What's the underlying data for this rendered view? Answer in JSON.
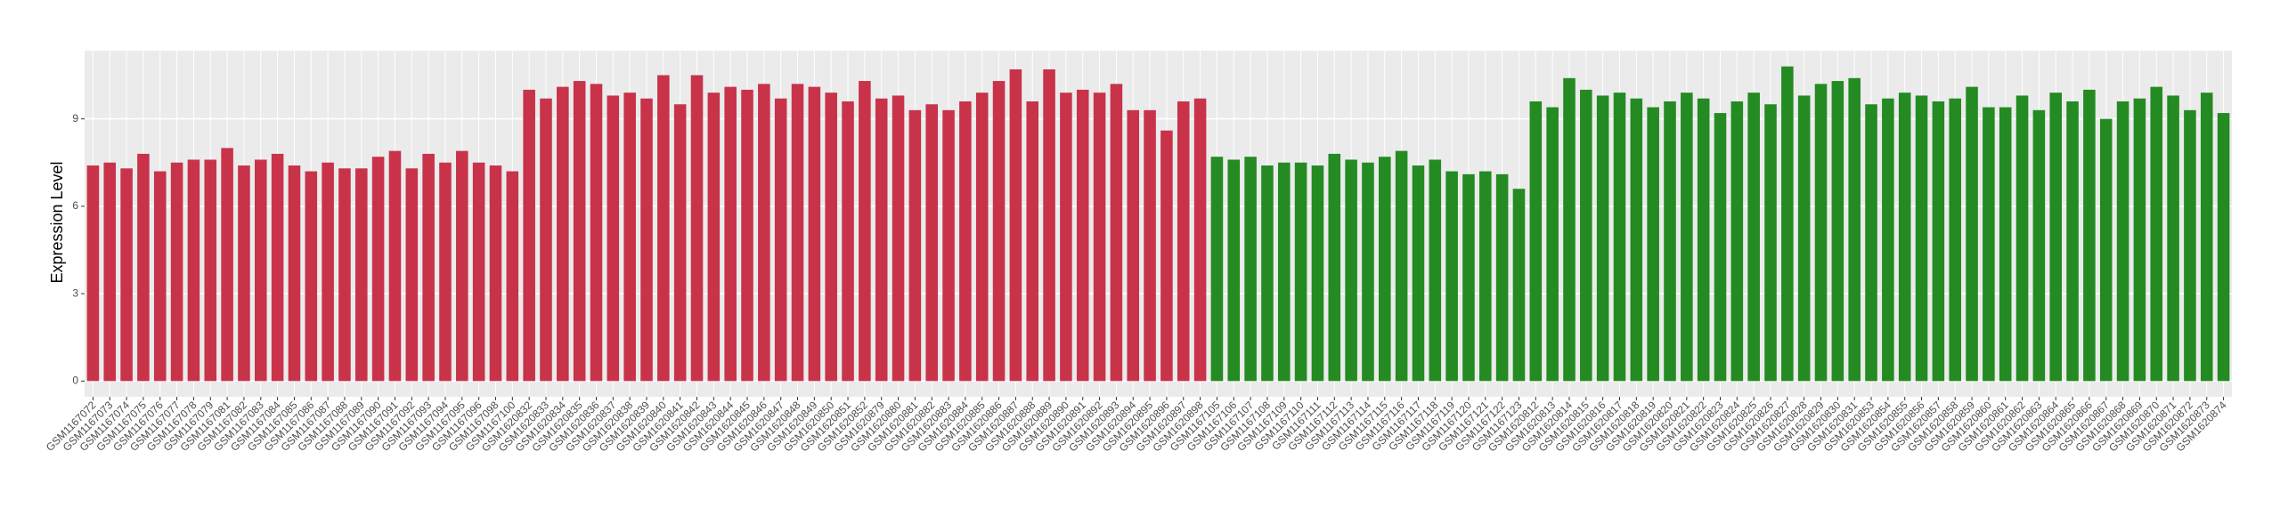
{
  "chart_data": {
    "type": "bar",
    "y_label": "Expression Level",
    "categories": [
      "GSM1167072",
      "GSM1167073",
      "GSM1167074",
      "GSM1167075",
      "GSM1167076",
      "GSM1167077",
      "GSM1167078",
      "GSM1167079",
      "GSM1167081",
      "GSM1167082",
      "GSM1167083",
      "GSM1167084",
      "GSM1167085",
      "GSM1167086",
      "GSM1167087",
      "GSM1167088",
      "GSM1167089",
      "GSM1167090",
      "GSM1167091",
      "GSM1167092",
      "GSM1167093",
      "GSM1167094",
      "GSM1167095",
      "GSM1167096",
      "GSM1167098",
      "GSM1167100",
      "GSM1620832",
      "GSM1620833",
      "GSM1620834",
      "GSM1620835",
      "GSM1620836",
      "GSM1620837",
      "GSM1620838",
      "GSM1620839",
      "GSM1620840",
      "GSM1620841",
      "GSM1620842",
      "GSM1620843",
      "GSM1620844",
      "GSM1620845",
      "GSM1620846",
      "GSM1620847",
      "GSM1620848",
      "GSM1620849",
      "GSM1620850",
      "GSM1620851",
      "GSM1620852",
      "GSM1620879",
      "GSM1620880",
      "GSM1620881",
      "GSM1620882",
      "GSM1620883",
      "GSM1620884",
      "GSM1620885",
      "GSM1620886",
      "GSM1620887",
      "GSM1620888",
      "GSM1620889",
      "GSM1620890",
      "GSM1620891",
      "GSM1620892",
      "GSM1620893",
      "GSM1620894",
      "GSM1620895",
      "GSM1620896",
      "GSM1620897",
      "GSM1620898",
      "GSM1167105",
      "GSM1167106",
      "GSM1167107",
      "GSM1167108",
      "GSM1167109",
      "GSM1167110",
      "GSM1167111",
      "GSM1167112",
      "GSM1167113",
      "GSM1167114",
      "GSM1167115",
      "GSM1167116",
      "GSM1167117",
      "GSM1167118",
      "GSM1167119",
      "GSM1167120",
      "GSM1167121",
      "GSM1167122",
      "GSM1167123",
      "GSM1620812",
      "GSM1620813",
      "GSM1620814",
      "GSM1620815",
      "GSM1620816",
      "GSM1620817",
      "GSM1620818",
      "GSM1620819",
      "GSM1620820",
      "GSM1620821",
      "GSM1620822",
      "GSM1620823",
      "GSM1620824",
      "GSM1620825",
      "GSM1620826",
      "GSM1620827",
      "GSM1620828",
      "GSM1620829",
      "GSM1620830",
      "GSM1620831",
      "GSM1620853",
      "GSM1620854",
      "GSM1620855",
      "GSM1620856",
      "GSM1620857",
      "GSM1620858",
      "GSM1620859",
      "GSM1620860",
      "GSM1620861",
      "GSM1620862",
      "GSM1620863",
      "GSM1620864",
      "GSM1620865",
      "GSM1620866",
      "GSM1620867",
      "GSM1620868",
      "GSM1620869",
      "GSM1620870",
      "GSM1620871",
      "GSM1620872",
      "GSM1620873",
      "GSM1620874"
    ],
    "values": [
      7.4,
      7.5,
      7.3,
      7.8,
      7.2,
      7.5,
      7.6,
      7.6,
      8.0,
      7.4,
      7.6,
      7.8,
      7.4,
      7.2,
      7.5,
      7.3,
      7.3,
      7.7,
      7.9,
      7.3,
      7.8,
      7.5,
      7.9,
      7.5,
      7.4,
      7.2,
      10.0,
      9.7,
      10.1,
      10.3,
      10.2,
      9.8,
      9.9,
      9.7,
      10.5,
      9.5,
      10.5,
      9.9,
      10.1,
      10.0,
      10.2,
      9.7,
      10.2,
      10.1,
      9.9,
      9.6,
      10.3,
      9.7,
      9.8,
      9.3,
      9.5,
      9.3,
      9.6,
      9.9,
      10.3,
      10.7,
      9.6,
      10.7,
      9.9,
      10.0,
      9.9,
      10.2,
      9.3,
      9.3,
      8.6,
      9.6,
      9.7,
      7.7,
      7.6,
      7.7,
      7.4,
      7.5,
      7.5,
      7.4,
      7.8,
      7.6,
      7.5,
      7.7,
      7.9,
      7.4,
      7.6,
      7.2,
      7.1,
      7.2,
      7.1,
      6.6,
      9.6,
      9.4,
      10.4,
      10.0,
      9.8,
      9.9,
      9.7,
      9.4,
      9.6,
      9.9,
      9.7,
      9.2,
      9.6,
      9.9,
      9.5,
      10.8,
      9.8,
      10.2,
      10.3,
      10.4,
      9.5,
      9.7,
      9.9,
      9.8,
      9.6,
      9.7,
      10.1,
      9.4,
      9.4,
      9.8,
      9.3,
      9.9,
      9.6,
      10.0,
      9.0,
      9.6,
      9.7,
      10.1,
      9.8,
      9.3,
      9.9,
      9.2
    ],
    "colors": [
      "#c8334a",
      "#c8334a",
      "#c8334a",
      "#c8334a",
      "#c8334a",
      "#c8334a",
      "#c8334a",
      "#c8334a",
      "#c8334a",
      "#c8334a",
      "#c8334a",
      "#c8334a",
      "#c8334a",
      "#c8334a",
      "#c8334a",
      "#c8334a",
      "#c8334a",
      "#c8334a",
      "#c8334a",
      "#c8334a",
      "#c8334a",
      "#c8334a",
      "#c8334a",
      "#c8334a",
      "#c8334a",
      "#c8334a",
      "#c8334a",
      "#c8334a",
      "#c8334a",
      "#c8334a",
      "#c8334a",
      "#c8334a",
      "#c8334a",
      "#c8334a",
      "#c8334a",
      "#c8334a",
      "#c8334a",
      "#c8334a",
      "#c8334a",
      "#c8334a",
      "#c8334a",
      "#c8334a",
      "#c8334a",
      "#c8334a",
      "#c8334a",
      "#c8334a",
      "#c8334a",
      "#c8334a",
      "#c8334a",
      "#c8334a",
      "#c8334a",
      "#c8334a",
      "#c8334a",
      "#c8334a",
      "#c8334a",
      "#c8334a",
      "#c8334a",
      "#c8334a",
      "#c8334a",
      "#c8334a",
      "#c8334a",
      "#c8334a",
      "#c8334a",
      "#c8334a",
      "#c8334a",
      "#c8334a",
      "#c8334a",
      "#238b22",
      "#238b22",
      "#238b22",
      "#238b22",
      "#238b22",
      "#238b22",
      "#238b22",
      "#238b22",
      "#238b22",
      "#238b22",
      "#238b22",
      "#238b22",
      "#238b22",
      "#238b22",
      "#238b22",
      "#238b22",
      "#238b22",
      "#238b22",
      "#238b22",
      "#238b22",
      "#238b22",
      "#238b22",
      "#238b22",
      "#238b22",
      "#238b22",
      "#238b22",
      "#238b22",
      "#238b22",
      "#238b22",
      "#238b22",
      "#238b22",
      "#238b22",
      "#238b22",
      "#238b22",
      "#238b22",
      "#238b22",
      "#238b22",
      "#238b22",
      "#238b22",
      "#238b22",
      "#238b22",
      "#238b22",
      "#238b22",
      "#238b22",
      "#238b22",
      "#238b22",
      "#238b22",
      "#238b22",
      "#238b22",
      "#238b22",
      "#238b22",
      "#238b22",
      "#238b22",
      "#238b22",
      "#238b22",
      "#238b22",
      "#238b22",
      "#238b22",
      "#238b22",
      "#238b22",
      "#238b22"
    ],
    "ylim": [
      -0.54,
      11.34
    ],
    "yticks": [
      0,
      3,
      6,
      9
    ],
    "grid": true
  }
}
